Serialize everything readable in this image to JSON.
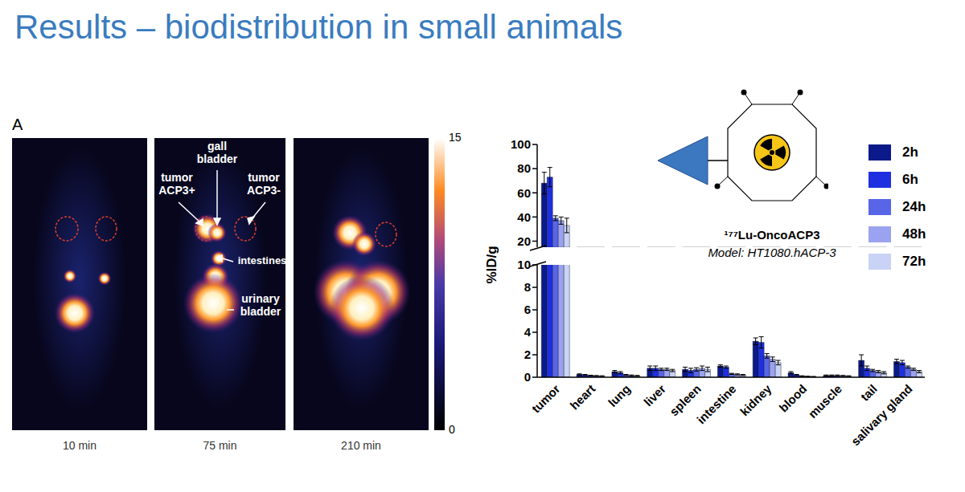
{
  "title": "Results – biodistribution in small animals",
  "panel": {
    "letter": "A",
    "images": [
      {
        "caption": "10 min",
        "labels": []
      },
      {
        "caption": "75 min",
        "labels": [
          "gall bladder",
          "tumor ACP3+",
          "tumor ACP3-",
          "intestines",
          "urinary bladder"
        ]
      },
      {
        "caption": "210 min",
        "labels": []
      }
    ],
    "colorbar": {
      "range": [
        0,
        15
      ],
      "ticks": [
        0,
        15
      ]
    }
  },
  "chart_data": {
    "type": "bar",
    "annotations": [
      "¹⁷⁷Lu-OncoACP3",
      "Model: HT1080.hACP-3"
    ],
    "ylabel": "%ID/g",
    "categories": [
      "tumor",
      "heart",
      "lung",
      "liver",
      "spleen",
      "intestine",
      "kidney",
      "blood",
      "muscle",
      "tail",
      "salivary gland"
    ],
    "series": [
      {
        "name": "2h",
        "color": "#0b1a8a",
        "values": [
          68,
          0.25,
          0.5,
          0.8,
          0.7,
          1.0,
          3.2,
          0.4,
          0.15,
          1.5,
          1.4
        ],
        "errors": [
          9,
          0.05,
          0.1,
          0.2,
          0.2,
          0.1,
          0.3,
          0.1,
          0.05,
          0.5,
          0.2
        ]
      },
      {
        "name": "6h",
        "color": "#1e2fe0",
        "values": [
          73,
          0.2,
          0.4,
          0.8,
          0.6,
          0.9,
          3.1,
          0.2,
          0.15,
          0.8,
          1.3
        ],
        "errors": [
          8,
          0.05,
          0.1,
          0.2,
          0.2,
          0.1,
          0.5,
          0.05,
          0.05,
          0.2,
          0.2
        ]
      },
      {
        "name": "24h",
        "color": "#5865e6",
        "values": [
          39,
          0.15,
          0.2,
          0.7,
          0.7,
          0.3,
          1.9,
          0.1,
          0.15,
          0.6,
          0.9
        ],
        "errors": [
          2,
          0.03,
          0.05,
          0.1,
          0.15,
          0.05,
          0.2,
          0.03,
          0.05,
          0.1,
          0.1
        ]
      },
      {
        "name": "48h",
        "color": "#9ba3f0",
        "values": [
          37,
          0.12,
          0.15,
          0.7,
          0.8,
          0.25,
          1.6,
          0.07,
          0.12,
          0.5,
          0.7
        ],
        "errors": [
          3,
          0.03,
          0.05,
          0.1,
          0.2,
          0.05,
          0.2,
          0.02,
          0.04,
          0.1,
          0.1
        ]
      },
      {
        "name": "72h",
        "color": "#c9d3f6",
        "values": [
          33,
          0.1,
          0.12,
          0.6,
          0.7,
          0.2,
          1.3,
          0.05,
          0.1,
          0.4,
          0.5
        ],
        "errors": [
          6,
          0.03,
          0.04,
          0.1,
          0.2,
          0.05,
          0.2,
          0.02,
          0.03,
          0.1,
          0.1
        ]
      }
    ],
    "ylim": [
      0,
      100
    ],
    "y_break": [
      10,
      15
    ],
    "yticks": [
      0,
      2,
      4,
      6,
      8,
      10,
      20,
      40,
      60,
      80,
      100
    ],
    "legend": "upper right"
  }
}
